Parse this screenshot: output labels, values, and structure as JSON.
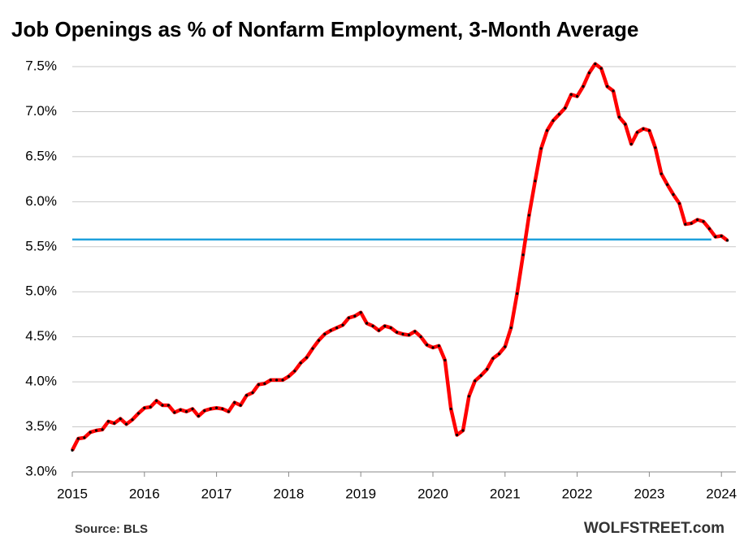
{
  "chart_data": {
    "type": "line",
    "title": "Job Openings as % of Nonfarm Employment, 3-Month Average",
    "source": "Source: BLS",
    "brand": "WOLFSTREET.com",
    "x": [
      2015,
      2015.083,
      2015.167,
      2015.25,
      2015.333,
      2015.417,
      2015.5,
      2015.583,
      2015.667,
      2015.75,
      2015.833,
      2015.917,
      2016,
      2016.083,
      2016.167,
      2016.25,
      2016.333,
      2016.417,
      2016.5,
      2016.583,
      2016.667,
      2016.75,
      2016.833,
      2016.917,
      2017,
      2017.083,
      2017.167,
      2017.25,
      2017.333,
      2017.417,
      2017.5,
      2017.583,
      2017.667,
      2017.75,
      2017.833,
      2017.917,
      2018,
      2018.083,
      2018.167,
      2018.25,
      2018.333,
      2018.417,
      2018.5,
      2018.583,
      2018.667,
      2018.75,
      2018.833,
      2018.917,
      2019,
      2019.083,
      2019.167,
      2019.25,
      2019.333,
      2019.417,
      2019.5,
      2019.583,
      2019.667,
      2019.75,
      2019.833,
      2019.917,
      2020,
      2020.083,
      2020.167,
      2020.25,
      2020.333,
      2020.417,
      2020.5,
      2020.583,
      2020.667,
      2020.75,
      2020.833,
      2020.917,
      2021,
      2021.083,
      2021.167,
      2021.25,
      2021.333,
      2021.417,
      2021.5,
      2021.583,
      2021.667,
      2021.75,
      2021.833,
      2021.917,
      2022,
      2022.083,
      2022.167,
      2022.25,
      2022.333,
      2022.417,
      2022.5,
      2022.583,
      2022.667,
      2022.75,
      2022.833,
      2022.917,
      2023,
      2023.083,
      2023.167,
      2023.25,
      2023.333,
      2023.417,
      2023.5,
      2023.583,
      2023.667,
      2023.75,
      2023.833,
      2023.917,
      2024,
      2024.083
    ],
    "series": [
      {
        "color": "#ff0000",
        "marker_color": "#000000",
        "values": [
          3.24,
          3.37,
          3.38,
          3.44,
          3.46,
          3.47,
          3.56,
          3.54,
          3.59,
          3.53,
          3.58,
          3.65,
          3.71,
          3.72,
          3.79,
          3.74,
          3.74,
          3.66,
          3.69,
          3.67,
          3.7,
          3.62,
          3.68,
          3.7,
          3.71,
          3.7,
          3.67,
          3.77,
          3.74,
          3.85,
          3.88,
          3.97,
          3.98,
          4.02,
          4.02,
          4.02,
          4.06,
          4.12,
          4.21,
          4.27,
          4.37,
          4.46,
          4.53,
          4.57,
          4.6,
          4.63,
          4.71,
          4.73,
          4.77,
          4.65,
          4.62,
          4.57,
          4.62,
          4.6,
          4.55,
          4.53,
          4.52,
          4.56,
          4.5,
          4.41,
          4.38,
          4.4,
          4.24,
          3.7,
          3.41,
          3.46,
          3.84,
          4.01,
          4.07,
          4.14,
          4.26,
          4.31,
          4.39,
          4.6,
          4.98,
          5.41,
          5.85,
          6.23,
          6.59,
          6.79,
          6.9,
          6.97,
          7.04,
          7.19,
          7.17,
          7.28,
          7.43,
          7.53,
          7.48,
          7.28,
          7.23,
          6.94,
          6.86,
          6.64,
          6.77,
          6.81,
          6.79,
          6.6,
          6.31,
          6.19,
          6.08,
          5.98,
          5.75,
          5.76,
          5.8,
          5.78,
          5.7,
          5.61,
          5.62,
          5.57
        ]
      }
    ],
    "reference_line": {
      "value": 5.58,
      "color": "#1ea0dc"
    },
    "xlim": [
      2015,
      2024.2
    ],
    "xticks": [
      2015,
      2016,
      2017,
      2018,
      2019,
      2020,
      2021,
      2022,
      2023,
      2024
    ],
    "ylim": [
      3,
      7.5
    ],
    "yticks": [
      {
        "value": 3,
        "label": "3.0%"
      },
      {
        "value": 3.5,
        "label": "3.5%"
      },
      {
        "value": 4,
        "label": "4.0%"
      },
      {
        "value": 4.5,
        "label": "4.5%"
      },
      {
        "value": 5,
        "label": "5.0%"
      },
      {
        "value": 5.5,
        "label": "5.5%"
      },
      {
        "value": 6,
        "label": "6.0%"
      },
      {
        "value": 6.5,
        "label": "6.5%"
      },
      {
        "value": 7,
        "label": "7.0%"
      },
      {
        "value": 7.5,
        "label": "7.5%"
      }
    ],
    "grid": true
  }
}
